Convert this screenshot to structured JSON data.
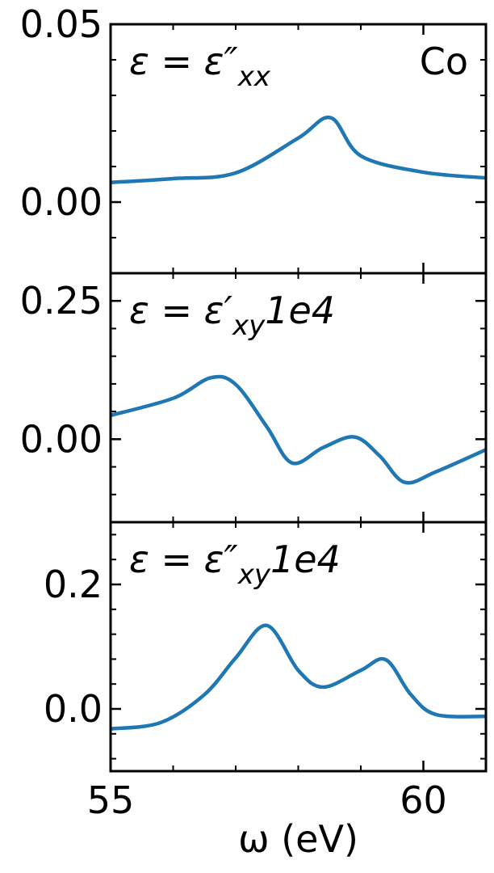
{
  "chart_data": [
    {
      "type": "line",
      "annotation": {
        "main": "ε = ε″",
        "sub": "xx"
      },
      "element": "Co",
      "x": [
        55,
        56,
        57,
        58,
        58.52,
        59,
        60,
        61
      ],
      "series": [
        {
          "color": "#1f77b4",
          "values": [
            0.0055,
            0.0066,
            0.0082,
            0.018,
            0.0237,
            0.013,
            0.0084,
            0.0068
          ]
        }
      ],
      "xlim": [
        55,
        61
      ],
      "xticks": [
        55,
        60
      ],
      "ylim": [
        -0.02,
        0.05
      ],
      "yticks": [
        {
          "value": 0,
          "label": "0.00"
        },
        {
          "value": 0.05,
          "label": "0.05"
        }
      ]
    },
    {
      "type": "line",
      "annotation": {
        "main": "ε = ε′",
        "sub": "xy",
        "tail": "1e4"
      },
      "x": [
        55,
        56,
        56.6,
        57,
        57.5,
        57.9,
        58.4,
        58.9,
        59.3,
        59.7,
        60.2,
        61
      ],
      "series": [
        {
          "color": "#1f77b4",
          "values": [
            0.043,
            0.074,
            0.111,
            0.099,
            0.022,
            -0.043,
            -0.015,
            0.004,
            -0.03,
            -0.078,
            -0.059,
            -0.019
          ]
        }
      ],
      "xlim": [
        55,
        61
      ],
      "xticks": [
        55,
        60
      ],
      "ylim": [
        -0.15,
        0.3
      ],
      "yticks": [
        {
          "value": 0,
          "label": "0.00"
        },
        0.25
      ]
    },
    {
      "type": "line",
      "annotation": {
        "main": "ε = ε″",
        "sub": "xy",
        "tail": "1e4"
      },
      "x": [
        55,
        55.8,
        56.5,
        57,
        57.5,
        58,
        58.4,
        59,
        59.4,
        59.8,
        60.2,
        61
      ],
      "series": [
        {
          "color": "#1f77b4",
          "values": [
            -0.032,
            -0.022,
            0.023,
            0.082,
            0.134,
            0.062,
            0.035,
            0.062,
            0.079,
            0.023,
            -0.009,
            -0.012
          ]
        }
      ],
      "xlim": [
        55,
        61
      ],
      "xticks": [
        55,
        60
      ],
      "xlabel": "ω (eV)",
      "ylim": [
        -0.1,
        0.3
      ],
      "yticks": [
        {
          "value": 0,
          "label": "0.0"
        },
        0.2
      ]
    }
  ]
}
